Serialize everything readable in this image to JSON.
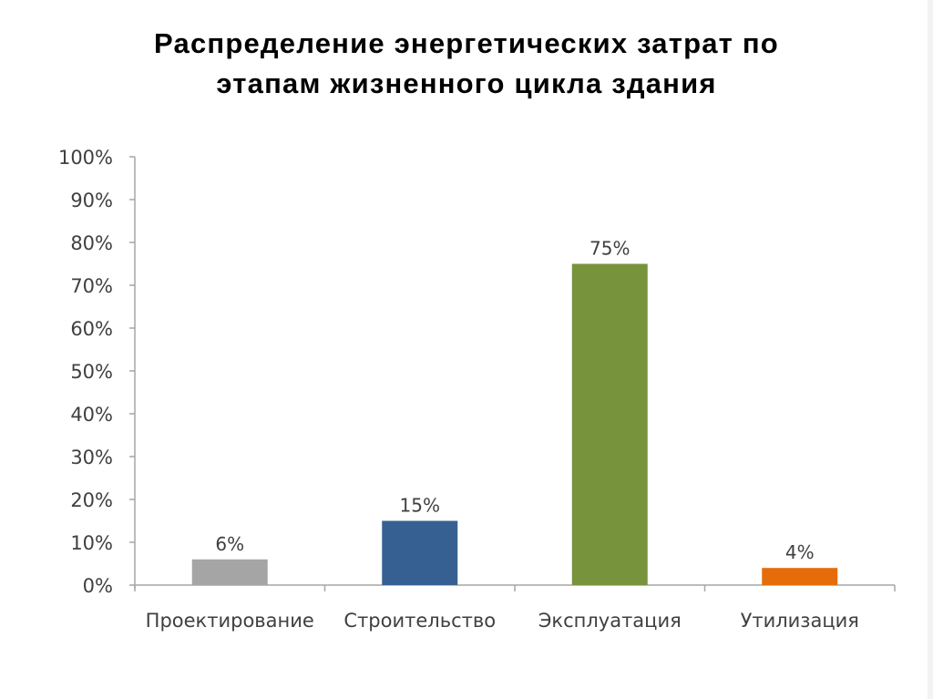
{
  "title": {
    "line1": "Распределение энергетических затрат по",
    "line2": "этапам жизненного цикла здания"
  },
  "colors": {
    "axis": "#A6A6A6",
    "text": "#404040",
    "title": "#000000",
    "bars": [
      "#A5A5A5",
      "#376092",
      "#77933C",
      "#E46C0A"
    ]
  },
  "y_axis": {
    "ticks": [
      "0%",
      "10%",
      "20%",
      "30%",
      "40%",
      "50%",
      "60%",
      "70%",
      "80%",
      "90%",
      "100%"
    ]
  },
  "bars": [
    {
      "label": "Проектирование",
      "value": 6,
      "value_label": "6%"
    },
    {
      "label": "Строительство",
      "value": 15,
      "value_label": "15%"
    },
    {
      "label": "Эксплуатация",
      "value": 75,
      "value_label": "75%"
    },
    {
      "label": "Утилизация",
      "value": 4,
      "value_label": "4%"
    }
  ],
  "chart_data": {
    "type": "bar",
    "title": "Распределение энергетических затрат по этапам жизненного цикла здания",
    "categories": [
      "Проектирование",
      "Строительство",
      "Эксплуатация",
      "Утилизация"
    ],
    "values": [
      6,
      15,
      75,
      4
    ],
    "data_labels": [
      "6%",
      "15%",
      "75%",
      "4%"
    ],
    "colors": [
      "#A5A5A5",
      "#376092",
      "#77933C",
      "#E46C0A"
    ],
    "xlabel": "",
    "ylabel": "",
    "ylim": [
      0,
      100
    ],
    "y_tick_step": 10,
    "y_format": "percent",
    "grid": false,
    "legend": "none"
  }
}
